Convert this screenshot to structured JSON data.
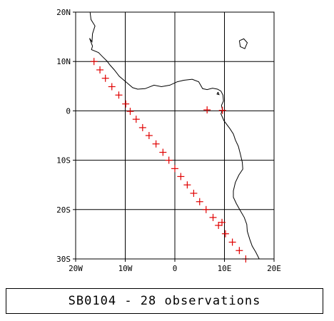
{
  "map": {
    "lon_range": [
      -20,
      20
    ],
    "lat_range": [
      -30,
      20
    ],
    "grid": true,
    "lon_ticks": [
      {
        "value": -20,
        "label": "20W"
      },
      {
        "value": -10,
        "label": "10W"
      },
      {
        "value": 0,
        "label": "0"
      },
      {
        "value": 10,
        "label": "10E"
      },
      {
        "value": 20,
        "label": "20E"
      }
    ],
    "lat_ticks": [
      {
        "value": 20,
        "label": "20N"
      },
      {
        "value": 10,
        "label": "10N"
      },
      {
        "value": 0,
        "label": "0"
      },
      {
        "value": -10,
        "label": "10S"
      },
      {
        "value": -20,
        "label": "20S"
      },
      {
        "value": -30,
        "label": "30S"
      }
    ],
    "observation_color": "#e00000",
    "coastline_color": "#000000",
    "observations": [
      {
        "lon": -16.3,
        "lat": 10.0
      },
      {
        "lon": -15.1,
        "lat": 8.3
      },
      {
        "lon": -14.0,
        "lat": 6.6
      },
      {
        "lon": -12.7,
        "lat": 4.9
      },
      {
        "lon": -11.3,
        "lat": 3.2
      },
      {
        "lon": -9.9,
        "lat": 1.4
      },
      {
        "lon": -9.0,
        "lat": -0.1
      },
      {
        "lon": -7.8,
        "lat": -1.7
      },
      {
        "lon": -6.5,
        "lat": -3.4
      },
      {
        "lon": -5.2,
        "lat": -5.0
      },
      {
        "lon": -3.8,
        "lat": -6.7
      },
      {
        "lon": -2.4,
        "lat": -8.4
      },
      {
        "lon": -1.2,
        "lat": -10.0
      },
      {
        "lon": 0.0,
        "lat": -11.7
      },
      {
        "lon": 1.2,
        "lat": -13.3
      },
      {
        "lon": 2.5,
        "lat": -15.0
      },
      {
        "lon": 3.8,
        "lat": -16.7
      },
      {
        "lon": 5.0,
        "lat": -18.4
      },
      {
        "lon": 6.3,
        "lat": -20.0
      },
      {
        "lon": 7.7,
        "lat": -21.6
      },
      {
        "lon": 8.8,
        "lat": -23.2
      },
      {
        "lon": 9.5,
        "lat": -22.6
      },
      {
        "lon": 10.2,
        "lat": -24.9
      },
      {
        "lon": 11.6,
        "lat": -26.6
      },
      {
        "lon": 13.0,
        "lat": -28.3
      },
      {
        "lon": 14.3,
        "lat": -30.0
      },
      {
        "lon": 6.5,
        "lat": 0.2
      },
      {
        "lon": 9.6,
        "lat": 0.1
      }
    ],
    "coastline": [
      [
        -17.1,
        20.0
      ],
      [
        -16.9,
        18.5
      ],
      [
        -16.1,
        17.2
      ],
      [
        -16.6,
        15.6
      ],
      [
        -16.7,
        14.0
      ],
      [
        -17.2,
        14.7
      ],
      [
        -16.6,
        13.1
      ],
      [
        -16.8,
        12.4
      ],
      [
        -15.4,
        11.8
      ],
      [
        -14.6,
        11.0
      ],
      [
        -13.7,
        10.1
      ],
      [
        -13.1,
        9.3
      ],
      [
        -12.2,
        8.3
      ],
      [
        -11.2,
        7.0
      ],
      [
        -9.9,
        5.9
      ],
      [
        -8.5,
        4.7
      ],
      [
        -7.5,
        4.4
      ],
      [
        -6.0,
        4.5
      ],
      [
        -4.2,
        5.2
      ],
      [
        -2.7,
        4.9
      ],
      [
        -1.0,
        5.2
      ],
      [
        0.5,
        5.9
      ],
      [
        1.8,
        6.2
      ],
      [
        3.5,
        6.4
      ],
      [
        4.8,
        5.9
      ],
      [
        5.6,
        4.5
      ],
      [
        6.5,
        4.3
      ],
      [
        7.6,
        4.6
      ],
      [
        8.6,
        4.4
      ],
      [
        9.3,
        4.0
      ],
      [
        9.7,
        3.2
      ],
      [
        9.8,
        2.0
      ],
      [
        9.4,
        1.1
      ],
      [
        9.6,
        0.2
      ],
      [
        9.3,
        -0.6
      ],
      [
        9.9,
        -2.0
      ],
      [
        11.1,
        -3.6
      ],
      [
        11.8,
        -4.7
      ],
      [
        12.2,
        -5.9
      ],
      [
        12.8,
        -7.2
      ],
      [
        13.2,
        -8.7
      ],
      [
        13.6,
        -10.4
      ],
      [
        13.7,
        -11.8
      ],
      [
        12.9,
        -13.0
      ],
      [
        12.2,
        -14.5
      ],
      [
        11.8,
        -16.2
      ],
      [
        11.8,
        -17.5
      ],
      [
        12.4,
        -18.8
      ],
      [
        13.2,
        -20.2
      ],
      [
        14.0,
        -21.6
      ],
      [
        14.5,
        -23.0
      ],
      [
        14.6,
        -24.4
      ],
      [
        15.1,
        -26.0
      ],
      [
        15.6,
        -27.4
      ],
      [
        16.3,
        -28.6
      ],
      [
        17.0,
        -30.0
      ]
    ],
    "islands": [
      [
        [
          13.0,
          14.2
        ],
        [
          13.9,
          14.6
        ],
        [
          14.6,
          13.8
        ],
        [
          14.1,
          12.6
        ],
        [
          13.2,
          13.0
        ],
        [
          13.0,
          14.2
        ]
      ],
      [
        [
          8.7,
          3.8
        ],
        [
          8.9,
          3.3
        ],
        [
          8.5,
          3.4
        ],
        [
          8.7,
          3.8
        ]
      ]
    ]
  },
  "caption": "SB0104 - 28 observations"
}
